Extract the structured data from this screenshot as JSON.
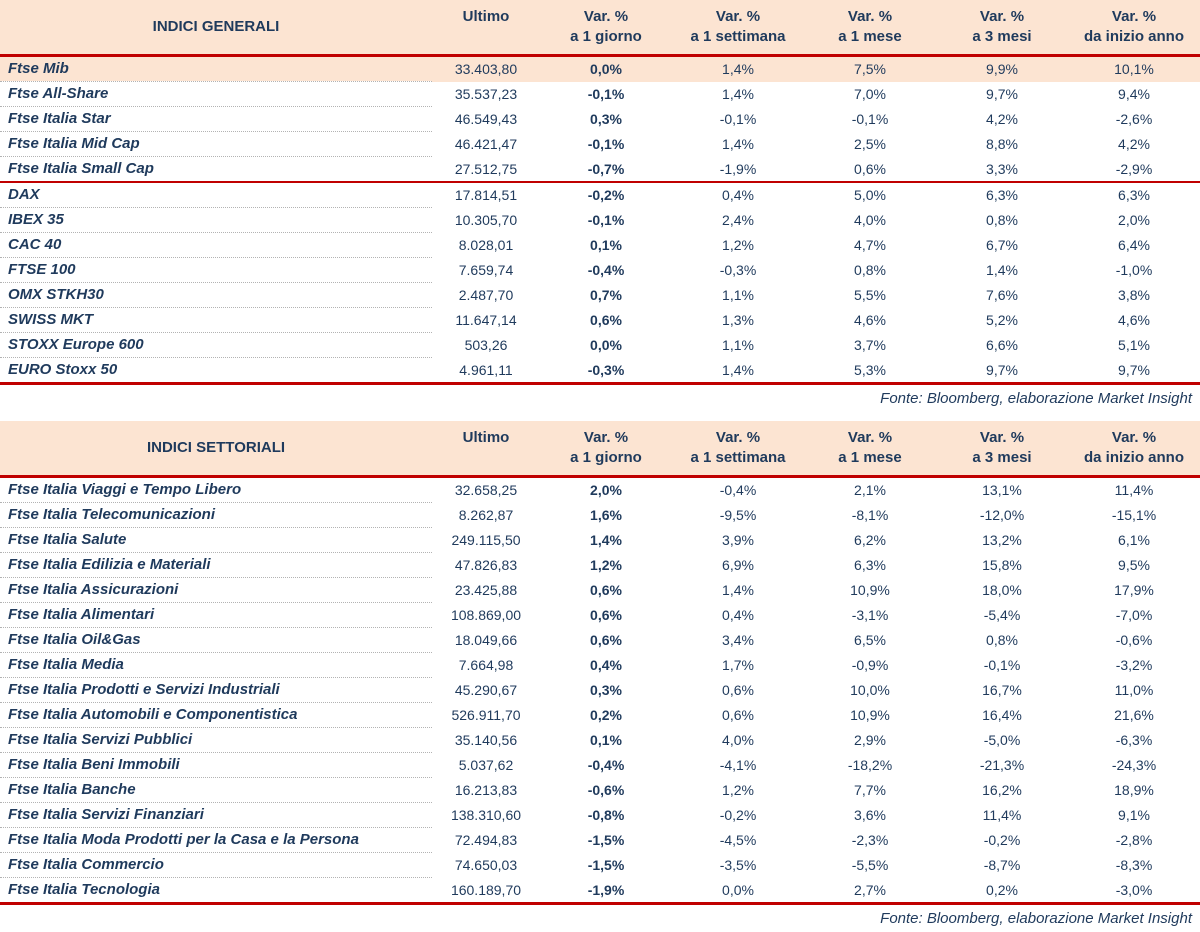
{
  "colors": {
    "header_bg": "#fce4d2",
    "accent_red": "#c00000",
    "text_navy": "#1f3a5c",
    "highlight_bg": "#fce4d2"
  },
  "columns": {
    "ultimo": "Ultimo",
    "var_label": "Var. %",
    "sub": [
      "a 1 giorno",
      "a 1 settimana",
      "a 1 mese",
      "a 3 mesi",
      "da inizio anno"
    ]
  },
  "tables": [
    {
      "title": "INDICI GENERALI",
      "source": "Fonte: Bloomberg, elaborazione Market Insight",
      "rows": [
        {
          "name": "Ftse Mib",
          "ultimo": "33.403,80",
          "d1": "0,0%",
          "w1": "1,4%",
          "m1": "7,5%",
          "m3": "9,9%",
          "ytd": "10,1%",
          "highlight": true
        },
        {
          "name": "Ftse All-Share",
          "ultimo": "35.537,23",
          "d1": "-0,1%",
          "w1": "1,4%",
          "m1": "7,0%",
          "m3": "9,7%",
          "ytd": "9,4%"
        },
        {
          "name": "Ftse Italia Star",
          "ultimo": "46.549,43",
          "d1": "0,3%",
          "w1": "-0,1%",
          "m1": "-0,1%",
          "m3": "4,2%",
          "ytd": "-2,6%"
        },
        {
          "name": "Ftse Italia Mid Cap",
          "ultimo": "46.421,47",
          "d1": "-0,1%",
          "w1": "1,4%",
          "m1": "2,5%",
          "m3": "8,8%",
          "ytd": "4,2%"
        },
        {
          "name": "Ftse Italia Small Cap",
          "ultimo": "27.512,75",
          "d1": "-0,7%",
          "w1": "-1,9%",
          "m1": "0,6%",
          "m3": "3,3%",
          "ytd": "-2,9%",
          "separator_after": true
        },
        {
          "name": "DAX",
          "ultimo": "17.814,51",
          "d1": "-0,2%",
          "w1": "0,4%",
          "m1": "5,0%",
          "m3": "6,3%",
          "ytd": "6,3%"
        },
        {
          "name": "IBEX 35",
          "ultimo": "10.305,70",
          "d1": "-0,1%",
          "w1": "2,4%",
          "m1": "4,0%",
          "m3": "0,8%",
          "ytd": "2,0%"
        },
        {
          "name": "CAC 40",
          "ultimo": "8.028,01",
          "d1": "0,1%",
          "w1": "1,2%",
          "m1": "4,7%",
          "m3": "6,7%",
          "ytd": "6,4%"
        },
        {
          "name": "FTSE 100",
          "ultimo": "7.659,74",
          "d1": "-0,4%",
          "w1": "-0,3%",
          "m1": "0,8%",
          "m3": "1,4%",
          "ytd": "-1,0%"
        },
        {
          "name": "OMX STKH30",
          "ultimo": "2.487,70",
          "d1": "0,7%",
          "w1": "1,1%",
          "m1": "5,5%",
          "m3": "7,6%",
          "ytd": "3,8%"
        },
        {
          "name": "SWISS MKT",
          "ultimo": "11.647,14",
          "d1": "0,6%",
          "w1": "1,3%",
          "m1": "4,6%",
          "m3": "5,2%",
          "ytd": "4,6%"
        },
        {
          "name": "STOXX Europe 600",
          "ultimo": "503,26",
          "d1": "0,0%",
          "w1": "1,1%",
          "m1": "3,7%",
          "m3": "6,6%",
          "ytd": "5,1%"
        },
        {
          "name": "EURO Stoxx 50",
          "ultimo": "4.961,11",
          "d1": "-0,3%",
          "w1": "1,4%",
          "m1": "5,3%",
          "m3": "9,7%",
          "ytd": "9,7%"
        }
      ]
    },
    {
      "title": "INDICI SETTORIALI",
      "source": "Fonte: Bloomberg, elaborazione Market Insight",
      "rows": [
        {
          "name": "Ftse Italia Viaggi e Tempo Libero",
          "ultimo": "32.658,25",
          "d1": "2,0%",
          "w1": "-0,4%",
          "m1": "2,1%",
          "m3": "13,1%",
          "ytd": "11,4%"
        },
        {
          "name": "Ftse Italia Telecomunicazioni",
          "ultimo": "8.262,87",
          "d1": "1,6%",
          "w1": "-9,5%",
          "m1": "-8,1%",
          "m3": "-12,0%",
          "ytd": "-15,1%"
        },
        {
          "name": "Ftse Italia Salute",
          "ultimo": "249.115,50",
          "d1": "1,4%",
          "w1": "3,9%",
          "m1": "6,2%",
          "m3": "13,2%",
          "ytd": "6,1%"
        },
        {
          "name": "Ftse Italia Edilizia e Materiali",
          "ultimo": "47.826,83",
          "d1": "1,2%",
          "w1": "6,9%",
          "m1": "6,3%",
          "m3": "15,8%",
          "ytd": "9,5%"
        },
        {
          "name": "Ftse Italia Assicurazioni",
          "ultimo": "23.425,88",
          "d1": "0,6%",
          "w1": "1,4%",
          "m1": "10,9%",
          "m3": "18,0%",
          "ytd": "17,9%"
        },
        {
          "name": "Ftse Italia Alimentari",
          "ultimo": "108.869,00",
          "d1": "0,6%",
          "w1": "0,4%",
          "m1": "-3,1%",
          "m3": "-5,4%",
          "ytd": "-7,0%"
        },
        {
          "name": "Ftse Italia Oil&Gas",
          "ultimo": "18.049,66",
          "d1": "0,6%",
          "w1": "3,4%",
          "m1": "6,5%",
          "m3": "0,8%",
          "ytd": "-0,6%"
        },
        {
          "name": "Ftse Italia Media",
          "ultimo": "7.664,98",
          "d1": "0,4%",
          "w1": "1,7%",
          "m1": "-0,9%",
          "m3": "-0,1%",
          "ytd": "-3,2%"
        },
        {
          "name": "Ftse Italia Prodotti e Servizi Industriali",
          "ultimo": "45.290,67",
          "d1": "0,3%",
          "w1": "0,6%",
          "m1": "10,0%",
          "m3": "16,7%",
          "ytd": "11,0%"
        },
        {
          "name": "Ftse Italia Automobili e Componentistica",
          "ultimo": "526.911,70",
          "d1": "0,2%",
          "w1": "0,6%",
          "m1": "10,9%",
          "m3": "16,4%",
          "ytd": "21,6%"
        },
        {
          "name": "Ftse Italia Servizi Pubblici",
          "ultimo": "35.140,56",
          "d1": "0,1%",
          "w1": "4,0%",
          "m1": "2,9%",
          "m3": "-5,0%",
          "ytd": "-6,3%"
        },
        {
          "name": "Ftse Italia Beni Immobili",
          "ultimo": "5.037,62",
          "d1": "-0,4%",
          "w1": "-4,1%",
          "m1": "-18,2%",
          "m3": "-21,3%",
          "ytd": "-24,3%"
        },
        {
          "name": "Ftse Italia Banche",
          "ultimo": "16.213,83",
          "d1": "-0,6%",
          "w1": "1,2%",
          "m1": "7,7%",
          "m3": "16,2%",
          "ytd": "18,9%"
        },
        {
          "name": "Ftse Italia Servizi Finanziari",
          "ultimo": "138.310,60",
          "d1": "-0,8%",
          "w1": "-0,2%",
          "m1": "3,6%",
          "m3": "11,4%",
          "ytd": "9,1%"
        },
        {
          "name": "Ftse Italia Moda Prodotti per la Casa e la Persona",
          "ultimo": "72.494,83",
          "d1": "-1,5%",
          "w1": "-4,5%",
          "m1": "-2,3%",
          "m3": "-0,2%",
          "ytd": "-2,8%"
        },
        {
          "name": "Ftse Italia Commercio",
          "ultimo": "74.650,03",
          "d1": "-1,5%",
          "w1": "-3,5%",
          "m1": "-5,5%",
          "m3": "-8,7%",
          "ytd": "-8,3%"
        },
        {
          "name": "Ftse Italia Tecnologia",
          "ultimo": "160.189,70",
          "d1": "-1,9%",
          "w1": "0,0%",
          "m1": "2,7%",
          "m3": "0,2%",
          "ytd": "-3,0%"
        }
      ]
    }
  ]
}
